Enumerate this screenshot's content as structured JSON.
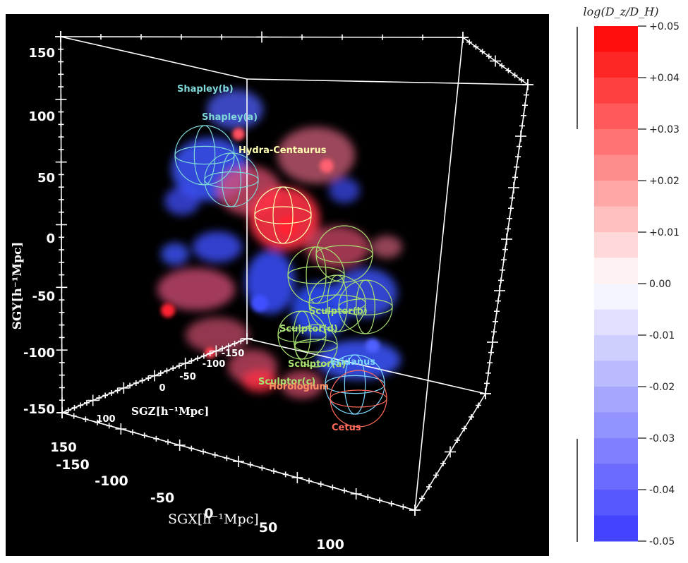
{
  "chart_data": {
    "type": "scatter",
    "axes": {
      "x": {
        "label": "SGX[h⁻¹Mpc]",
        "ticks": [
          "-150",
          "-100",
          "-50",
          "0",
          "50",
          "100",
          "150"
        ],
        "range": [
          -150,
          150
        ]
      },
      "y": {
        "label": "SGY[h⁻¹Mpc]",
        "ticks": [
          "150",
          "100",
          "50",
          "0",
          "-50",
          "-100",
          "-150"
        ],
        "range": [
          -150,
          150
        ]
      },
      "z": {
        "label": "SGZ[h⁻¹Mpc]",
        "ticks": [
          "-150",
          "-100",
          "-50",
          "0",
          "100",
          "150"
        ],
        "range": [
          -150,
          150
        ]
      }
    },
    "structures": [
      {
        "label": "Shapley(b)",
        "color": "#7fd8d8"
      },
      {
        "label": "Shapley(a)",
        "color": "#7fd8d8"
      },
      {
        "label": "Hydra-Centaurus",
        "color": "#ffffb0"
      },
      {
        "label": "Sculptor(b)",
        "color": "#a8e070"
      },
      {
        "label": "Sculptor(d)",
        "color": "#a8e070"
      },
      {
        "label": "Sculptor(a)",
        "color": "#a8e070"
      },
      {
        "label": "Sculptor(c)",
        "color": "#a8e070"
      },
      {
        "label": "Eridanus",
        "color": "#7fd8ff"
      },
      {
        "label": "Horologium",
        "color": "#ff9060"
      },
      {
        "label": "Cetus",
        "color": "#ff6a5a"
      }
    ],
    "colorbar": {
      "title": "log(D_z/D_H)",
      "range": [
        -0.05,
        0.05
      ],
      "ticks": [
        "+0.05",
        "+0.04",
        "+0.03",
        "+0.02",
        "+0.01",
        "0.00",
        "-0.01",
        "-0.02",
        "-0.03",
        "-0.04",
        "-0.05"
      ],
      "color_high": "#ff0000",
      "color_mid": "#ffffff",
      "color_low": "#3a3aff"
    }
  }
}
